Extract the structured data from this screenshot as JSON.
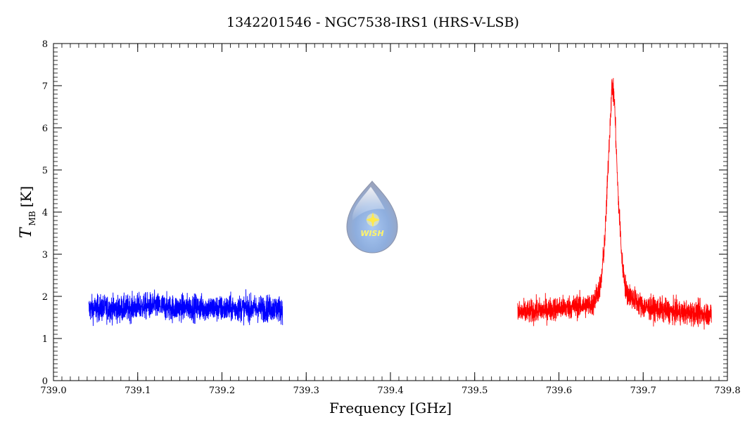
{
  "chart_data": {
    "type": "line",
    "title": "1342201546 - NGC7538-IRS1 (HRS-V-LSB)",
    "xlabel": "Frequency [GHz]",
    "ylabel": "T",
    "ylabel_subscript": "MB",
    "ylabel_unit": "[K]",
    "xlim": [
      739.0,
      739.8
    ],
    "ylim": [
      0,
      8
    ],
    "x_ticks": [
      739.0,
      739.1,
      739.2,
      739.3,
      739.4,
      739.5,
      739.6,
      739.7,
      739.8
    ],
    "x_tick_labels": [
      "739.0",
      "739.1",
      "739.2",
      "739.3",
      "739.4",
      "739.5",
      "739.6",
      "739.7",
      "739.8"
    ],
    "y_ticks": [
      0,
      1,
      2,
      3,
      4,
      5,
      6,
      7,
      8
    ],
    "y_tick_labels": [
      "0",
      "1",
      "2",
      "3",
      "4",
      "5",
      "6",
      "7",
      "8"
    ],
    "grid": false,
    "series": [
      {
        "color": "#0000ff",
        "x_range": [
          739.042,
          739.272
        ],
        "baseline": 1.72,
        "noise_amplitude": 0.55,
        "x": [
          739.042,
          739.06,
          739.08,
          739.1,
          739.12,
          739.14,
          739.16,
          739.18,
          739.2,
          739.22,
          739.24,
          739.26,
          739.272
        ],
        "y": [
          1.7,
          1.72,
          1.7,
          1.75,
          1.78,
          1.72,
          1.74,
          1.73,
          1.7,
          1.72,
          1.71,
          1.72,
          1.7
        ]
      },
      {
        "color": "#ff0000",
        "x_range": [
          739.551,
          739.781
        ],
        "baseline": 1.68,
        "noise_amplitude": 0.5,
        "x": [
          739.551,
          739.6,
          739.64,
          739.65,
          739.655,
          739.66,
          739.663,
          739.666,
          739.67,
          739.675,
          739.68,
          739.7,
          739.74,
          739.781
        ],
        "y": [
          1.6,
          1.72,
          1.8,
          2.3,
          3.5,
          5.8,
          7.05,
          6.6,
          4.5,
          2.8,
          2.1,
          1.75,
          1.62,
          1.58
        ]
      }
    ],
    "logo": {
      "text": "WISH"
    }
  }
}
